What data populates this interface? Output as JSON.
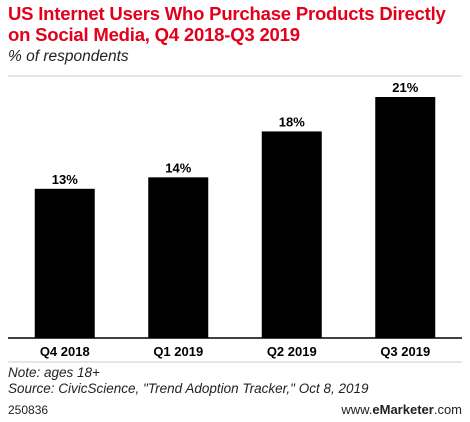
{
  "header": {
    "title": "US Internet Users Who Purchase Products Directly on Social Media, Q4 2018-Q3 2019",
    "subtitle": "% of respondents"
  },
  "footer": {
    "note": "Note: ages 18+",
    "source": "Source: CivicScience, \"Trend Adoption Tracker,\" Oct 8, 2019",
    "chart_id": "250836",
    "brand_prefix": "www.",
    "brand_name": "eMarketer",
    "brand_suffix": ".com"
  },
  "colors": {
    "title": "#e2001a",
    "bar": "#000000",
    "grid": "#cccccc"
  },
  "chart_data": {
    "type": "bar",
    "categories": [
      "Q4 2018",
      "Q1 2019",
      "Q2 2019",
      "Q3 2019"
    ],
    "values": [
      13,
      14,
      18,
      21
    ],
    "value_labels": [
      "13%",
      "14%",
      "18%",
      "21%"
    ],
    "title": "US Internet Users Who Purchase Products Directly on Social Media, Q4 2018-Q3 2019",
    "ylabel": "% of respondents",
    "xlabel": "",
    "ylim": [
      0,
      21
    ],
    "grid": false,
    "legend": "none"
  }
}
